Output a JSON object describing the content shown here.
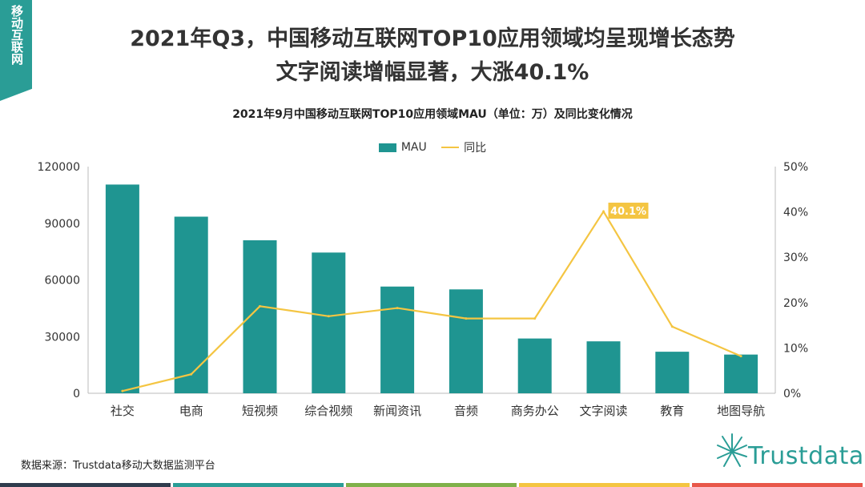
{
  "side_tag": "移动互联网",
  "title_line1": "2021年Q3，中国移动互联网TOP10应用领域均呈现增长态势",
  "title_line2": "文字阅读增幅显著，大涨40.1%",
  "source": "数据来源：Trustdata移动大数据监测平台",
  "logo_text": "Trustdata",
  "colors": {
    "bar": "#1f9591",
    "line": "#f4c542",
    "label_bg": "#f4c542",
    "accent": "#2a9d96"
  },
  "bottom_bar_colors": [
    "#2f3c4d",
    "#2a9d96",
    "#7fb14a",
    "#f4c542",
    "#e8574a"
  ],
  "chart_data": {
    "type": "bar",
    "title": "2021年9月中国移动互联网TOP10应用领域MAU（单位：万）及同比变化情况",
    "categories": [
      "社交",
      "电商",
      "短视频",
      "综合视频",
      "新闻资讯",
      "音频",
      "商务办公",
      "文字阅读",
      "教育",
      "地图导航"
    ],
    "series": [
      {
        "name": "MAU",
        "type": "bar",
        "axis": "left",
        "values": [
          110500,
          93500,
          81000,
          74500,
          56500,
          55000,
          29000,
          27500,
          22000,
          20500
        ]
      },
      {
        "name": "同比",
        "type": "line",
        "axis": "right",
        "values": [
          0.5,
          4.2,
          19.2,
          17.0,
          18.8,
          16.5,
          16.5,
          40.1,
          14.7,
          8.2
        ]
      }
    ],
    "y_left": {
      "min": 0,
      "max": 120000,
      "ticks": [
        0,
        30000,
        60000,
        90000,
        120000
      ]
    },
    "y_right": {
      "min": 0,
      "max": 50,
      "ticks": [
        "0%",
        "10%",
        "20%",
        "30%",
        "40%",
        "50%"
      ]
    },
    "annotation": {
      "category": "文字阅读",
      "text": "40.1%"
    },
    "legend_position": "top-center"
  }
}
